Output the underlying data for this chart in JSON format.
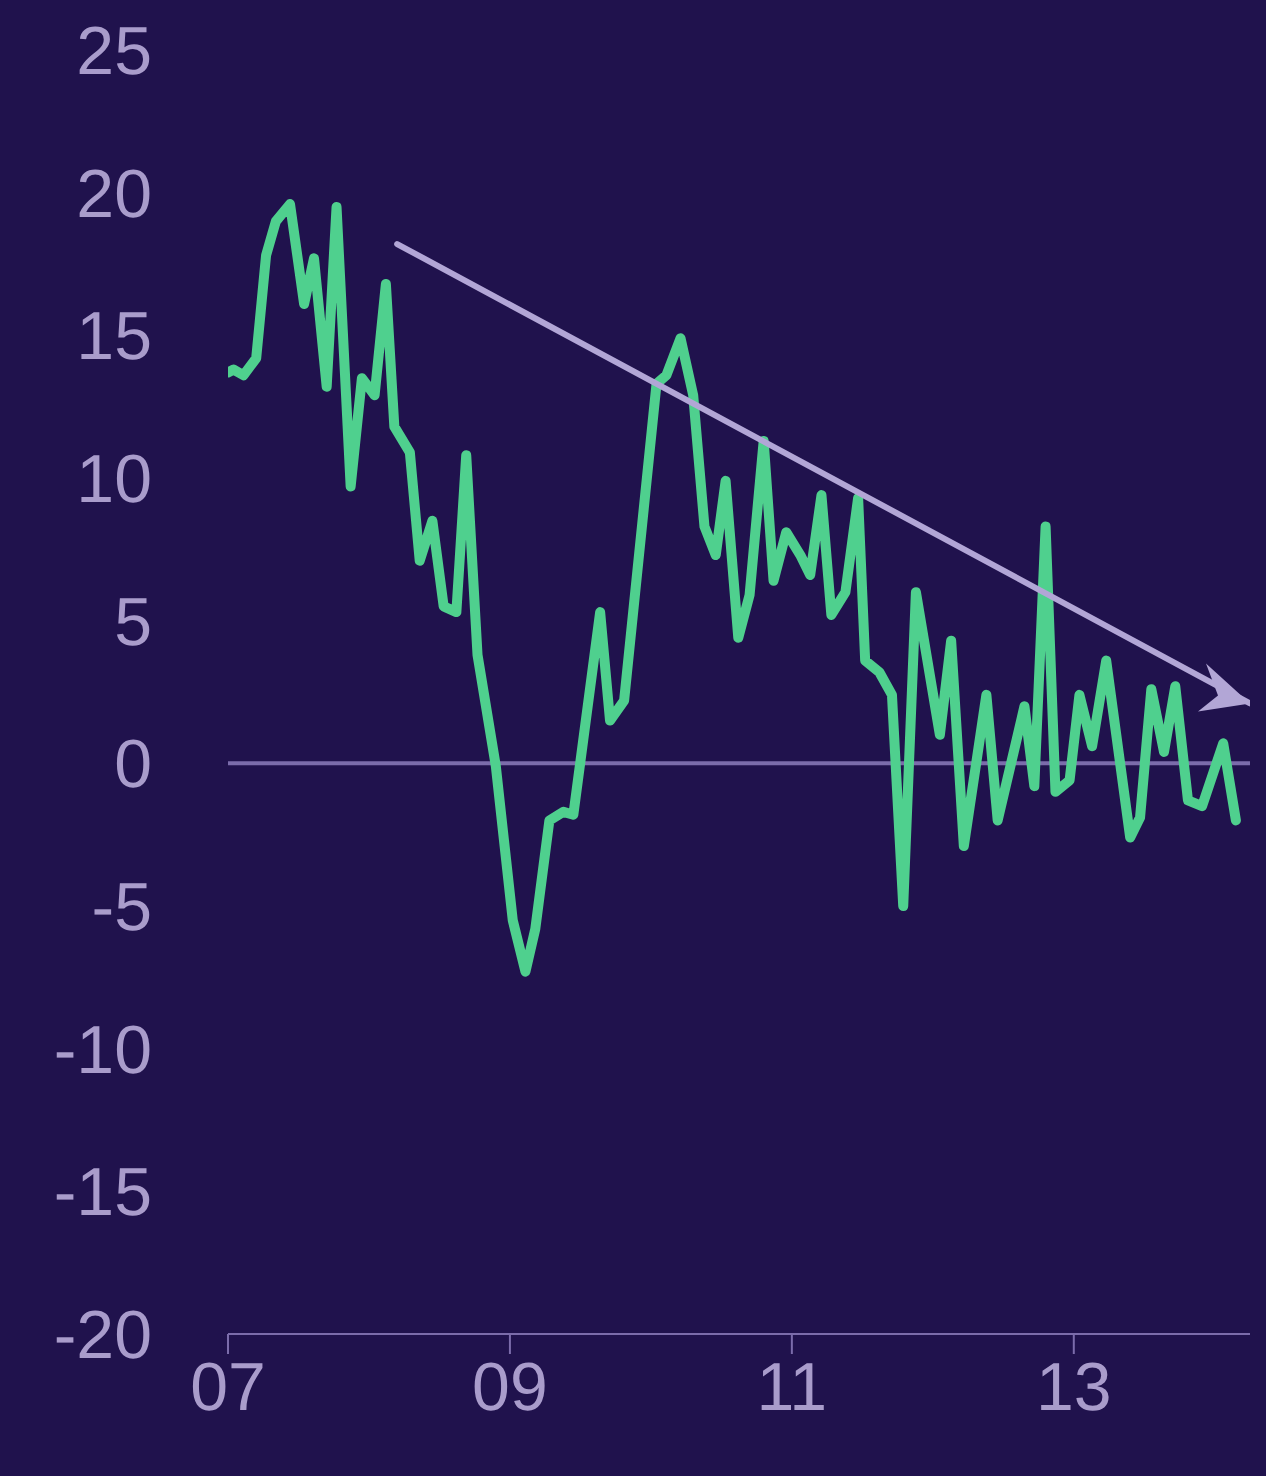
{
  "chart_data": {
    "type": "line",
    "xlim": [
      2007,
      2014.25
    ],
    "xticks": [
      {
        "value": 2007,
        "label": "07"
      },
      {
        "value": 2009,
        "label": "09"
      },
      {
        "value": 2011,
        "label": "11"
      },
      {
        "value": 2013,
        "label": "13"
      }
    ],
    "ylim": [
      -20,
      25
    ],
    "yticks": [
      -20,
      -15,
      -10,
      -5,
      0,
      5,
      10,
      15,
      20,
      25
    ],
    "marker": "none",
    "legend": false,
    "ref_lines": [
      {
        "axis": "y",
        "value": 0,
        "color": "#7b6cab"
      }
    ],
    "x": [
      2007.0,
      2007.04,
      2007.11,
      2007.2,
      2007.27,
      2007.34,
      2007.44,
      2007.54,
      2007.61,
      2007.7,
      2007.77,
      2007.87,
      2007.95,
      2008.04,
      2008.12,
      2008.18,
      2008.29,
      2008.36,
      2008.45,
      2008.53,
      2008.62,
      2008.69,
      2008.77,
      2008.9,
      2009.02,
      2009.11,
      2009.18,
      2009.28,
      2009.38,
      2009.45,
      2009.64,
      2009.71,
      2009.81,
      2010.04,
      2010.11,
      2010.21,
      2010.3,
      2010.38,
      2010.46,
      2010.53,
      2010.62,
      2010.7,
      2010.8,
      2010.87,
      2010.96,
      2011.06,
      2011.13,
      2011.21,
      2011.28,
      2011.38,
      2011.47,
      2011.52,
      2011.62,
      2011.71,
      2011.79,
      2011.88,
      2012.05,
      2012.13,
      2012.22,
      2012.38,
      2012.46,
      2012.65,
      2012.72,
      2012.8,
      2012.87,
      2012.97,
      2013.04,
      2013.13,
      2013.23,
      2013.4,
      2013.47,
      2013.55,
      2013.64,
      2013.72,
      2013.81,
      2013.91,
      2014.06,
      2014.15
    ],
    "series": [
      {
        "color": "#4fd08e",
        "values": [
          13.7,
          13.8,
          13.6,
          14.2,
          17.8,
          19.0,
          19.6,
          16.1,
          17.7,
          13.2,
          19.5,
          9.7,
          13.5,
          12.9,
          16.8,
          11.8,
          10.9,
          7.1,
          8.5,
          5.5,
          5.3,
          10.8,
          3.8,
          -0.1,
          -5.5,
          -7.3,
          -5.8,
          -2.0,
          -1.7,
          -1.8,
          5.3,
          1.5,
          2.2,
          13.3,
          13.6,
          14.9,
          12.9,
          8.3,
          7.3,
          9.9,
          4.4,
          5.9,
          11.3,
          6.4,
          8.1,
          7.3,
          6.6,
          9.4,
          5.2,
          6.0,
          9.3,
          3.6,
          3.2,
          2.4,
          -5.0,
          6.0,
          1.0,
          4.3,
          -2.9,
          2.4,
          -2.0,
          2.0,
          -0.8,
          8.3,
          -1.0,
          -0.6,
          2.4,
          0.6,
          3.6,
          -2.6,
          -1.9,
          2.6,
          0.4,
          2.7,
          -1.3,
          -1.5,
          0.7,
          -2.0
        ]
      },
      {
        "type": "line",
        "color": "#b2a6d6",
        "x": [
          2008.2,
          2014.25
        ],
        "values": [
          18.2,
          2.1
        ]
      }
    ]
  }
}
